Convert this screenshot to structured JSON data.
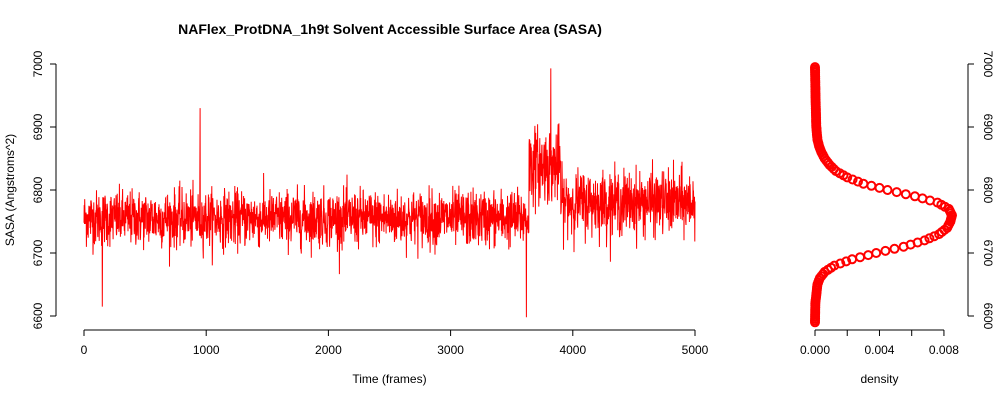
{
  "chart_data": [
    {
      "type": "line",
      "title": "NAFlex_ProtDNA_1h9t Solvent Accessible Surface Area (SASA)",
      "xlabel": "Time (frames)",
      "ylabel": "SASA (Angstroms^2)",
      "xlim": [
        0,
        5000
      ],
      "ylim": [
        6600,
        7000
      ],
      "x_ticks": [
        "0",
        "1000",
        "2000",
        "3000",
        "4000",
        "5000"
      ],
      "y_ticks": [
        "6600",
        "6700",
        "6800",
        "6900",
        "7000"
      ],
      "grid": false,
      "color": "#ff0000",
      "series": [
        {
          "summary_segments": [
            {
              "x_range": [
                0,
                3640
              ],
              "center": 6755,
              "noise_sd": 22
            },
            {
              "x_range": [
                3640,
                3900
              ],
              "center": 6840,
              "noise_sd": 30
            },
            {
              "x_range": [
                3900,
                5000
              ],
              "center": 6780,
              "noise_sd": 25
            }
          ],
          "notable_points": [
            {
              "x": 150,
              "y": 6615
            },
            {
              "x": 950,
              "y": 6930
            },
            {
              "x": 3620,
              "y": 6598
            },
            {
              "x": 3820,
              "y": 6993
            }
          ]
        }
      ]
    },
    {
      "type": "line",
      "title": "",
      "xlabel": "density",
      "ylabel": "",
      "xlim": [
        0,
        0.0085
      ],
      "ylim": [
        6600,
        7000
      ],
      "x_ticks": [
        "0.000",
        "0.004",
        "0.008"
      ],
      "y_ticks": [
        "6600",
        "6700",
        "6800",
        "6900",
        "7000"
      ],
      "y_axis_side": "right",
      "color": "#ff0000",
      "series": [
        {
          "sasa": [
            6590,
            6620,
            6650,
            6660,
            6670,
            6680,
            6690,
            6700,
            6710,
            6720,
            6730,
            6740,
            6750,
            6760,
            6770,
            6780,
            6790,
            6800,
            6810,
            6820,
            6830,
            6840,
            6850,
            6860,
            6870,
            6880,
            6900,
            6950,
            6995
          ],
          "density": [
            0.0,
            2e-05,
            0.00015,
            0.0003,
            0.0006,
            0.0012,
            0.0023,
            0.0038,
            0.0055,
            0.0068,
            0.0077,
            0.0082,
            0.0084,
            0.0085,
            0.0083,
            0.0076,
            0.0062,
            0.0045,
            0.003,
            0.002,
            0.0013,
            0.0009,
            0.0006,
            0.0004,
            0.00025,
            0.00015,
            8e-05,
            3e-05,
            0.0
          ]
        }
      ]
    }
  ]
}
